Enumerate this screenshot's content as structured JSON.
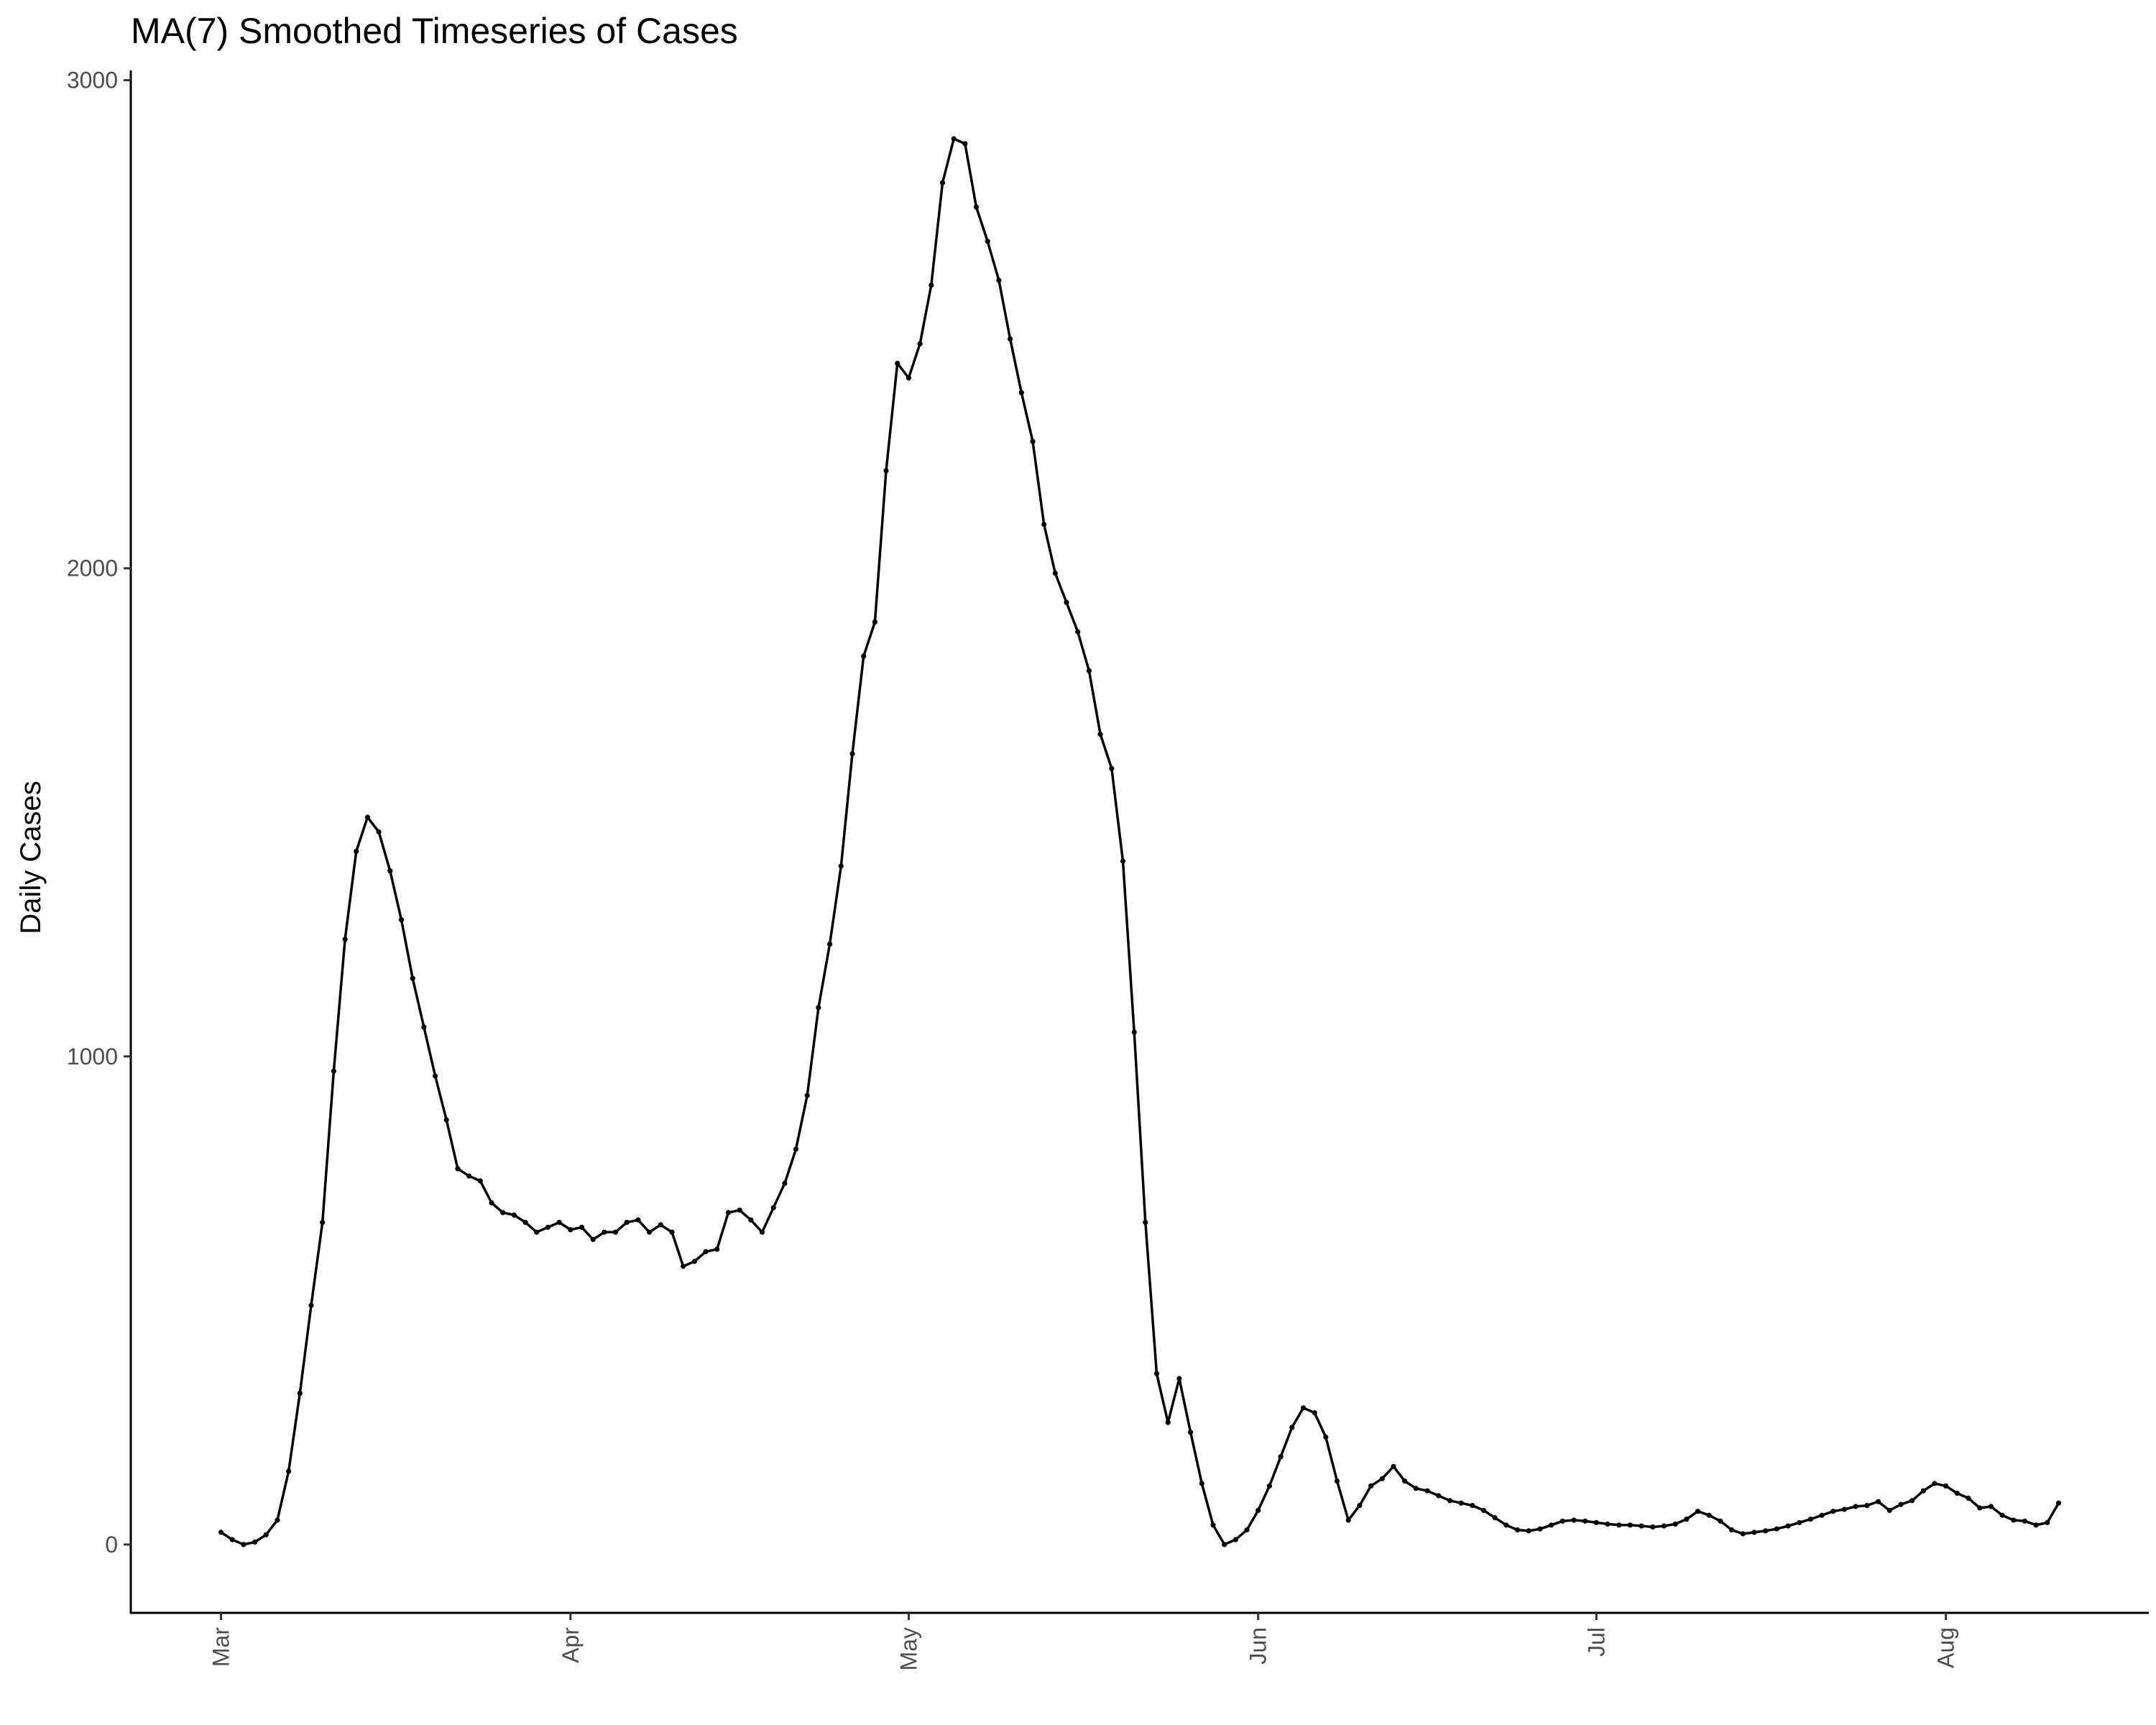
{
  "chart_data": {
    "type": "line",
    "title": "MA(7) Smoothed Timeseries of Cases",
    "xlabel": "",
    "ylabel": "Daily Cases",
    "x_start": "2020-03-01",
    "x_end": "2020-08-11",
    "xlim": [
      "2020-02-22",
      "2020-08-19"
    ],
    "ylim": [
      -140,
      3020
    ],
    "grid": false,
    "legend": "none",
    "x_ticks": [
      {
        "date": "2020-03-01",
        "label": "Mar"
      },
      {
        "date": "2020-04-01",
        "label": "Apr"
      },
      {
        "date": "2020-05-01",
        "label": "May"
      },
      {
        "date": "2020-06-01",
        "label": "Jun"
      },
      {
        "date": "2020-07-01",
        "label": "Jul"
      },
      {
        "date": "2020-08-01",
        "label": "Aug"
      }
    ],
    "y_ticks": [
      {
        "value": 0,
        "label": "0"
      },
      {
        "value": 1000,
        "label": "1000"
      },
      {
        "value": 2000,
        "label": "2000"
      },
      {
        "value": 3000,
        "label": "3000"
      }
    ],
    "series": [
      {
        "color": "#000000",
        "values": [
          25,
          10,
          0,
          5,
          20,
          50,
          150,
          310,
          490,
          660,
          970,
          1240,
          1420,
          1490,
          1460,
          1380,
          1280,
          1160,
          1060,
          960,
          870,
          770,
          755,
          745,
          700,
          680,
          675,
          660,
          640,
          650,
          660,
          645,
          650,
          625,
          640,
          640,
          660,
          665,
          640,
          655,
          640,
          570,
          580,
          600,
          605,
          680,
          685,
          665,
          640,
          690,
          740,
          810,
          920,
          1100,
          1230,
          1390,
          1620,
          1820,
          1890,
          2200,
          2420,
          2390,
          2460,
          2580,
          2790,
          2880,
          2870,
          2740,
          2670,
          2590,
          2470,
          2360,
          2260,
          2090,
          1990,
          1930,
          1870,
          1790,
          1660,
          1590,
          1400,
          1050,
          660,
          350,
          250,
          340,
          230,
          125,
          40,
          0,
          10,
          30,
          70,
          120,
          180,
          240,
          280,
          270,
          220,
          130,
          50,
          80,
          120,
          135,
          160,
          130,
          115,
          110,
          100,
          90,
          85,
          80,
          70,
          55,
          40,
          30,
          28,
          32,
          40,
          48,
          50,
          48,
          45,
          42,
          40,
          40,
          38,
          36,
          38,
          42,
          52,
          68,
          60,
          48,
          30,
          22,
          25,
          28,
          32,
          38,
          45,
          52,
          60,
          68,
          72,
          78,
          80,
          88,
          70,
          82,
          90,
          110,
          125,
          120,
          105,
          95,
          75,
          78,
          60,
          50,
          48,
          40,
          45,
          85
        ]
      }
    ]
  }
}
